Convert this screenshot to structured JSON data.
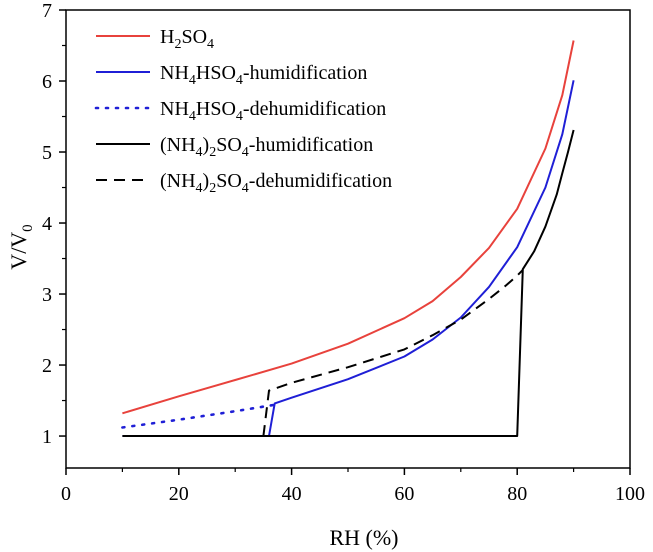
{
  "chart_data": {
    "type": "line",
    "title": "",
    "xlabel": "RH (%)",
    "ylabel_main": "V/V",
    "ylabel_sub": "0",
    "xlim": [
      0,
      100
    ],
    "ylim": [
      0.55,
      7
    ],
    "x_ticks": [
      0,
      20,
      40,
      60,
      80,
      100
    ],
    "y_ticks": [
      1,
      2,
      3,
      4,
      5,
      6,
      7
    ],
    "x_tick_labels": [
      "0",
      "20",
      "40",
      "60",
      "80",
      "100"
    ],
    "y_tick_labels": [
      "1",
      "2",
      "3",
      "4",
      "5",
      "6",
      "7"
    ],
    "grid": false,
    "legend_position": "top-left",
    "series": [
      {
        "key": "h2so4",
        "name": "H2SO4",
        "legend_parts": [
          [
            "H",
            ""
          ],
          [
            "2",
            "sub"
          ],
          [
            "SO",
            ""
          ],
          [
            "4",
            "sub"
          ]
        ],
        "color": "#e8423c",
        "style": "solid",
        "x": [
          10,
          20,
          30,
          40,
          50,
          60,
          65,
          70,
          75,
          80,
          85,
          88,
          90
        ],
        "y": [
          1.32,
          1.56,
          1.79,
          2.02,
          2.3,
          2.66,
          2.9,
          3.24,
          3.65,
          4.2,
          5.05,
          5.8,
          6.57
        ]
      },
      {
        "key": "nh4hso4-humid",
        "name": "NH4HSO4-humidification",
        "legend_parts": [
          [
            "NH",
            ""
          ],
          [
            "4",
            "sub"
          ],
          [
            "HSO",
            ""
          ],
          [
            "4",
            "sub"
          ],
          [
            "-humidification",
            ""
          ]
        ],
        "color": "#1f1fd6",
        "style": "solid",
        "x": [
          10,
          36,
          37,
          40,
          50,
          60,
          65,
          70,
          75,
          80,
          85,
          88,
          90
        ],
        "y": [
          1.0,
          1.0,
          1.46,
          1.54,
          1.8,
          2.12,
          2.36,
          2.67,
          3.1,
          3.66,
          4.5,
          5.25,
          6.01
        ]
      },
      {
        "key": "nh4hso4-dehumid",
        "name": "NH4HSO4-dehumidification",
        "legend_parts": [
          [
            "NH",
            ""
          ],
          [
            "4",
            "sub"
          ],
          [
            "HSO",
            ""
          ],
          [
            "4",
            "sub"
          ],
          [
            "-dehumidification",
            ""
          ]
        ],
        "color": "#1f1fd6",
        "style": "dotted",
        "x": [
          10,
          20,
          30,
          37
        ],
        "y": [
          1.12,
          1.23,
          1.35,
          1.44
        ]
      },
      {
        "key": "nh42so4-humid",
        "name": "(NH4)2SO4-humidification",
        "legend_parts": [
          [
            "(NH",
            ""
          ],
          [
            "4",
            "sub"
          ],
          [
            ")",
            ""
          ],
          [
            "2",
            "sub"
          ],
          [
            "SO",
            ""
          ],
          [
            "4",
            "sub"
          ],
          [
            "-humidification",
            ""
          ]
        ],
        "color": "#000000",
        "style": "solid",
        "x": [
          10,
          80,
          81,
          83,
          85,
          87,
          88,
          89,
          90
        ],
        "y": [
          1.0,
          1.0,
          3.35,
          3.6,
          3.95,
          4.4,
          4.7,
          5.0,
          5.31
        ]
      },
      {
        "key": "nh42so4-dehumid",
        "name": "(NH4)2SO4-dehumidification",
        "legend_parts": [
          [
            "(NH",
            ""
          ],
          [
            "4",
            "sub"
          ],
          [
            ")",
            ""
          ],
          [
            "2",
            "sub"
          ],
          [
            "SO",
            ""
          ],
          [
            "4",
            "sub"
          ],
          [
            "-dehumidification",
            ""
          ]
        ],
        "color": "#000000",
        "style": "dashed",
        "x": [
          35,
          36,
          40,
          50,
          60,
          65,
          70,
          75,
          78,
          80,
          81
        ],
        "y": [
          1.0,
          1.64,
          1.75,
          1.97,
          2.22,
          2.42,
          2.64,
          2.93,
          3.12,
          3.26,
          3.34
        ]
      }
    ]
  }
}
